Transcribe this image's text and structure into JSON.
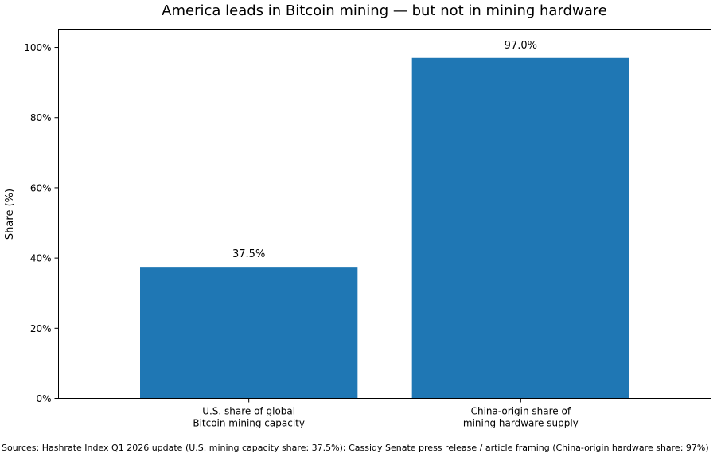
{
  "chart_data": {
    "type": "bar",
    "title": "America leads in Bitcoin mining — but not in mining hardware",
    "xlabel": "",
    "ylabel": "Share (%)",
    "categories": [
      [
        "U.S. share of global",
        "Bitcoin mining capacity"
      ],
      [
        "China-origin share of",
        "mining hardware supply"
      ]
    ],
    "values": [
      37.5,
      97.0
    ],
    "value_labels": [
      "37.5%",
      "97.0%"
    ],
    "ylim": [
      0,
      105
    ],
    "yticks": [
      0,
      20,
      40,
      60,
      80,
      100
    ],
    "ytick_labels": [
      "0%",
      "20%",
      "40%",
      "60%",
      "80%",
      "100%"
    ],
    "bar_color": "#1f77b4",
    "grid": false,
    "legend": "none"
  },
  "footer": {
    "sources": "Sources: Hashrate Index Q1 2026 update (U.S. mining capacity share: 37.5%); Cassidy Senate press release / article framing (China-origin hardware share: 97%)"
  }
}
